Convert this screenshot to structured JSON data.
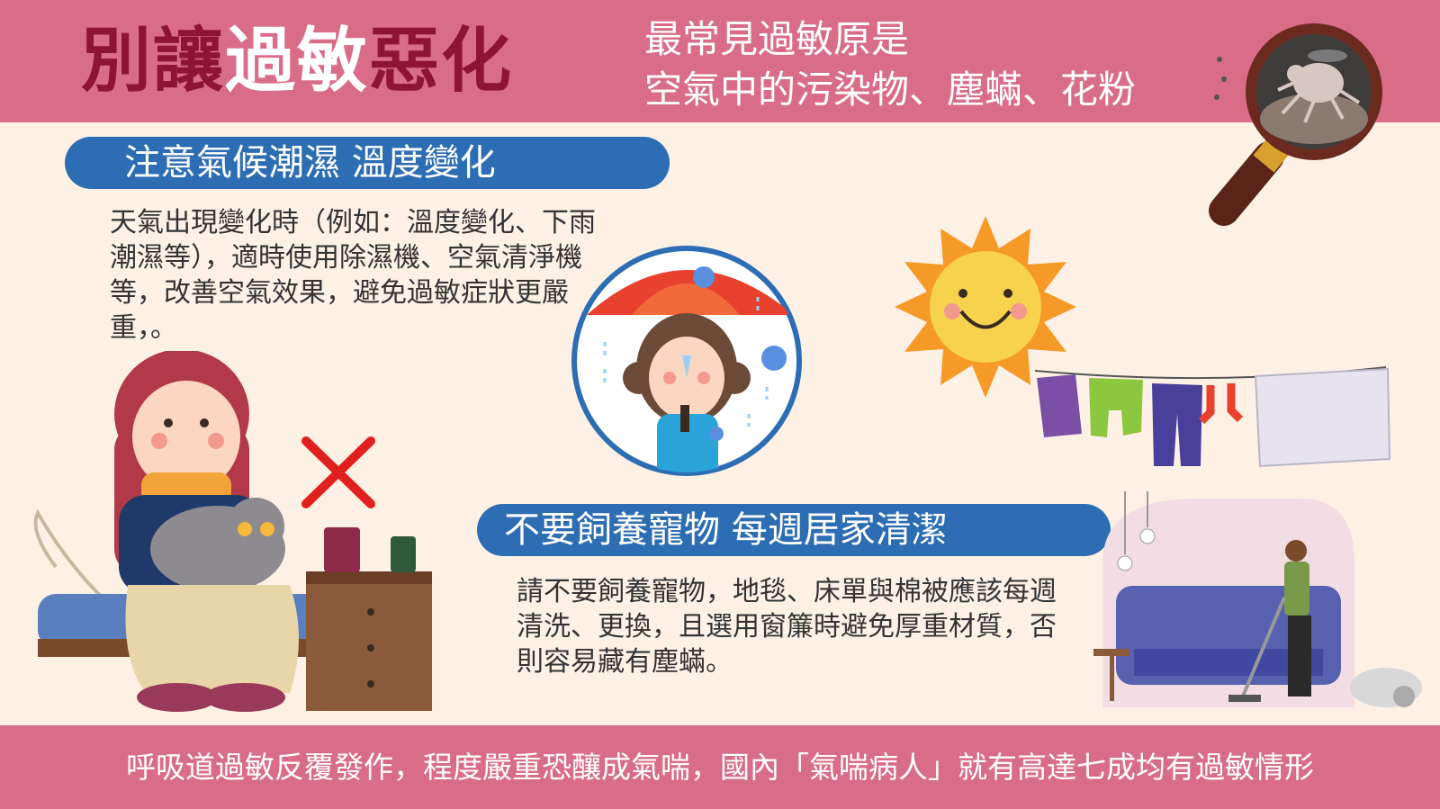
{
  "header": {
    "title_part1": "別讓",
    "title_part2": "過敏",
    "title_part3": "惡化",
    "subtitle_line1": "最常見過敏原是",
    "subtitle_line2": "空氣中的污染物、塵蟎、花粉"
  },
  "section1": {
    "heading": "注意氣候潮濕 溫度變化",
    "body": "天氣出現變化時（例如：溫度變化、下雨潮濕等），適時使用除濕機、空氣清淨機等，改善空氣效果，避免過敏症狀更嚴重，。"
  },
  "section2": {
    "heading": "不要飼養寵物 每週居家清潔",
    "body": "請不要飼養寵物，地毯、床單與棉被應該每週清洗、更換，且選用窗簾時避免厚重材質，否則容易藏有塵蟎。"
  },
  "footer": {
    "text": "呼吸道過敏反覆發作，程度嚴重恐釀成氣喘，國內「氣喘病人」就有高達七成均有過敏情形"
  },
  "colors": {
    "header_bg": "#d96c86",
    "title_dark": "#8e1437",
    "pill_blue": "#2c6db3",
    "page_bg": "#fdf1e6"
  }
}
